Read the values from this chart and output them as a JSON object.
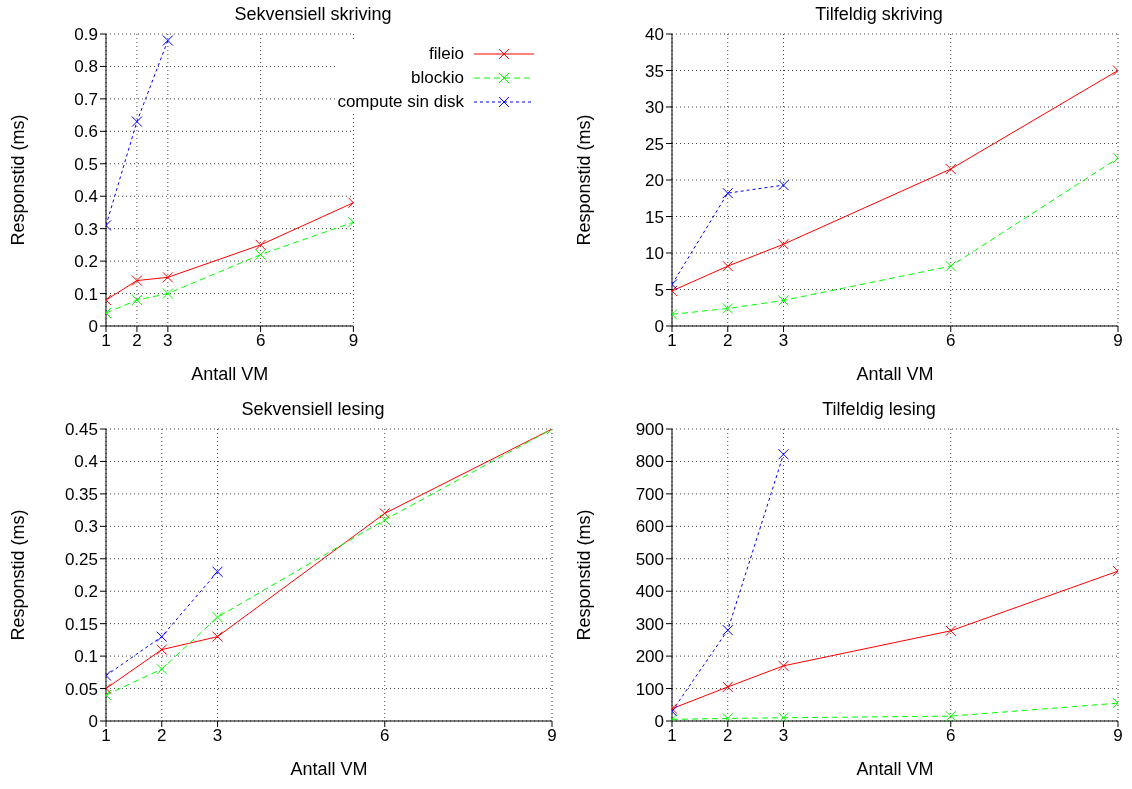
{
  "chart_data": [
    {
      "type": "line",
      "title": "Sekvensiell skriving",
      "xlabel": "Antall VM",
      "ylabel": "Responstid (ms)",
      "xlim": [
        1,
        9
      ],
      "xticks": [
        1,
        2,
        3,
        6,
        9
      ],
      "ylim": [
        0,
        0.9
      ],
      "yticks": [
        0,
        0.1,
        0.2,
        0.3,
        0.4,
        0.5,
        0.6,
        0.7,
        0.8,
        0.9
      ],
      "grid": true,
      "legend": "top right",
      "series": [
        {
          "name": "fileio",
          "color": "#ff0000",
          "x": [
            1,
            2,
            3,
            6,
            9
          ],
          "values": [
            0.08,
            0.14,
            0.15,
            0.25,
            0.38
          ],
          "marker": "cross",
          "line_style": "solid"
        },
        {
          "name": "blockio",
          "color": "#00ff00",
          "x": [
            1,
            2,
            3,
            6,
            9
          ],
          "values": [
            0.04,
            0.08,
            0.1,
            0.22,
            0.32
          ],
          "marker": "cross",
          "line_style": "dashed"
        },
        {
          "name": "compute sin disk",
          "color": "#0000ff",
          "x": [
            1,
            2,
            3
          ],
          "values": [
            0.31,
            0.63,
            0.88
          ],
          "marker": "cross",
          "line_style": "dotted"
        }
      ]
    },
    {
      "type": "line",
      "title": "Tilfeldig skriving",
      "xlabel": "Antall VM",
      "ylabel": "Responstid (ms)",
      "xlim": [
        1,
        9
      ],
      "xticks": [
        1,
        2,
        3,
        6,
        9
      ],
      "ylim": [
        0,
        40
      ],
      "yticks": [
        0,
        5,
        10,
        15,
        20,
        25,
        30,
        35,
        40
      ],
      "grid": true,
      "series": [
        {
          "color": "#ff0000",
          "x": [
            1,
            2,
            3,
            6,
            9
          ],
          "values": [
            4.8,
            8.2,
            11.2,
            21.5,
            35
          ],
          "marker": "cross",
          "line_style": "solid"
        },
        {
          "color": "#00ff00",
          "x": [
            1,
            2,
            3,
            6,
            9
          ],
          "values": [
            1.6,
            2.4,
            3.5,
            8.2,
            23
          ],
          "marker": "cross",
          "line_style": "dashed"
        },
        {
          "color": "#0000ff",
          "x": [
            1,
            2,
            3
          ],
          "values": [
            5.7,
            18.2,
            19.3
          ],
          "marker": "cross",
          "line_style": "dotted"
        }
      ]
    },
    {
      "type": "line",
      "title": "Sekvensiell lesing",
      "xlabel": "Antall VM",
      "ylabel": "Responstid (ms)",
      "xlim": [
        1,
        9
      ],
      "xticks": [
        1,
        2,
        3,
        6,
        9
      ],
      "ylim": [
        0,
        0.45
      ],
      "yticks": [
        0,
        0.05,
        0.1,
        0.15,
        0.2,
        0.25,
        0.3,
        0.35,
        0.4,
        0.45
      ],
      "grid": true,
      "series": [
        {
          "color": "#ff0000",
          "x": [
            1,
            2,
            3,
            6,
            9
          ],
          "values": [
            0.05,
            0.11,
            0.13,
            0.32,
            0.45
          ],
          "marker": "cross",
          "line_style": "solid"
        },
        {
          "color": "#00ff00",
          "x": [
            1,
            2,
            3,
            6,
            9
          ],
          "values": [
            0.04,
            0.08,
            0.16,
            0.31,
            0.45
          ],
          "marker": "cross",
          "line_style": "dashed"
        },
        {
          "color": "#0000ff",
          "x": [
            1,
            2,
            3
          ],
          "values": [
            0.07,
            0.13,
            0.23
          ],
          "marker": "cross",
          "line_style": "dotted"
        }
      ]
    },
    {
      "type": "line",
      "title": "Tilfeldig lesing",
      "xlabel": "Antall VM",
      "ylabel": "Responstid (ms)",
      "xlim": [
        1,
        9
      ],
      "xticks": [
        1,
        2,
        3,
        6,
        9
      ],
      "ylim": [
        0,
        900
      ],
      "yticks": [
        0,
        100,
        200,
        300,
        400,
        500,
        600,
        700,
        800,
        900
      ],
      "grid": true,
      "series": [
        {
          "color": "#ff0000",
          "x": [
            1,
            2,
            3,
            6,
            9
          ],
          "values": [
            38,
            105,
            170,
            278,
            462
          ],
          "marker": "cross",
          "line_style": "solid"
        },
        {
          "color": "#00ff00",
          "x": [
            1,
            2,
            3,
            6,
            9
          ],
          "values": [
            5,
            8,
            10,
            15,
            55
          ],
          "marker": "cross",
          "line_style": "dashed"
        },
        {
          "color": "#0000ff",
          "x": [
            1,
            2,
            3
          ],
          "values": [
            30,
            280,
            822
          ],
          "marker": "cross",
          "line_style": "dotted"
        }
      ]
    }
  ]
}
